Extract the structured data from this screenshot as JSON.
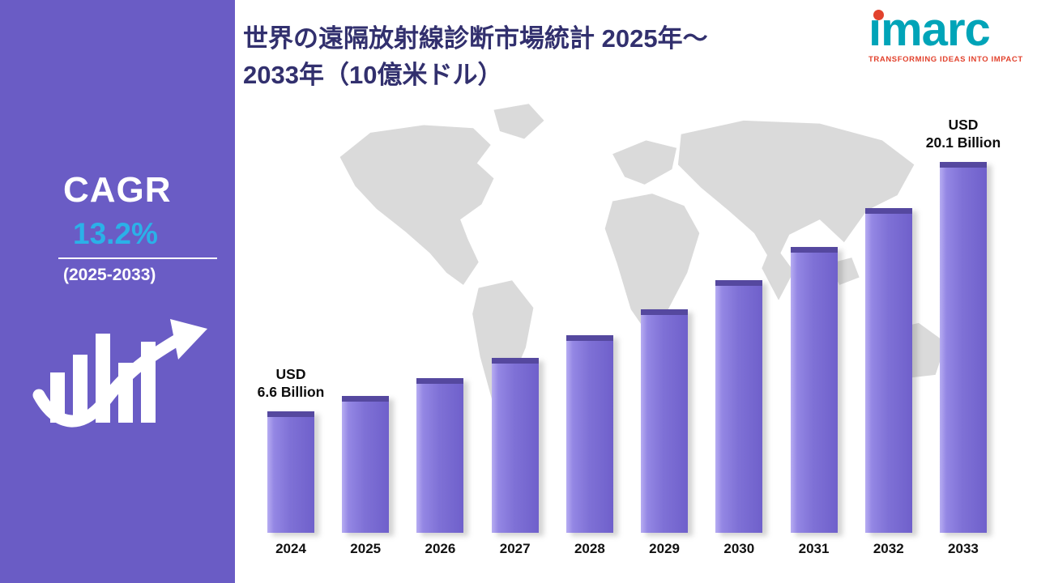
{
  "sidebar": {
    "cagr_label": "CAGR",
    "cagr_value": "13.2%",
    "period": "(2025-2033)",
    "bg_color": "#6a5cc5",
    "accent_color": "#2bb1e8"
  },
  "header": {
    "title_line1": "世界の遠隔放射線診断市場統計 2025年～",
    "title_line2": "2033年（10億米ドル）",
    "color": "#32306e"
  },
  "logo": {
    "text": "imarc",
    "tagline": "TRANSFORMING IDEAS INTO IMPACT",
    "teal": "#00a4b8",
    "red": "#e2422d"
  },
  "chart_data": {
    "type": "bar",
    "title": "世界の遠隔放射線診断市場統計 2025年～2033年（10億米ドル）",
    "unit": "USD Billion",
    "categories": [
      "2024",
      "2025",
      "2026",
      "2027",
      "2028",
      "2029",
      "2030",
      "2031",
      "2032",
      "2033"
    ],
    "values": [
      6.6,
      7.4,
      8.4,
      9.5,
      10.7,
      12.1,
      13.7,
      15.5,
      17.6,
      20.1
    ],
    "ylim": [
      0,
      20.1
    ],
    "bar_color": "#7f71d6",
    "grid": false,
    "legend": false,
    "annotations": [
      {
        "index": 0,
        "lines": [
          "USD",
          "6.6 Billion"
        ]
      },
      {
        "index": 9,
        "lines": [
          "USD",
          "20.1 Billion"
        ]
      }
    ]
  }
}
